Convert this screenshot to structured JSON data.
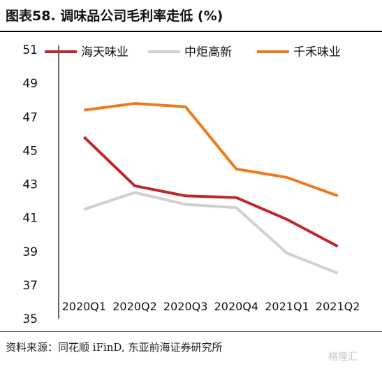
{
  "title": "图表58. 调味品公司毛利率走低 (%)",
  "source": "资料来源：同花顺 iFinD, 东亚前海证券研究所",
  "watermark": "格隆汇",
  "chart_data": {
    "type": "line",
    "categories": [
      "2020Q1",
      "2020Q2",
      "2020Q3",
      "2020Q4",
      "2021Q1",
      "2021Q2"
    ],
    "series": [
      {
        "name": "海天味业",
        "color": "#c0272d",
        "values": [
          45.8,
          42.9,
          42.3,
          42.2,
          40.9,
          39.3
        ]
      },
      {
        "name": "中炬高新",
        "color": "#d0d0d0",
        "values": [
          41.5,
          42.5,
          41.8,
          41.6,
          38.9,
          37.7
        ]
      },
      {
        "name": "千禾味业",
        "color": "#f07a1a",
        "values": [
          47.4,
          47.8,
          47.6,
          43.9,
          43.4,
          42.3
        ]
      }
    ],
    "yticks": [
      35,
      37,
      39,
      41,
      43,
      45,
      47,
      49,
      51
    ],
    "ylim": [
      35,
      51
    ],
    "grid": false,
    "legend": "top"
  }
}
